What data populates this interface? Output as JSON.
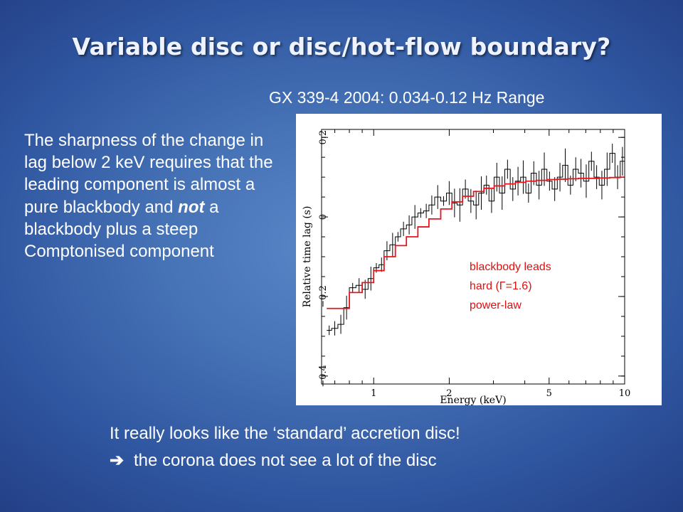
{
  "slide": {
    "title": "Variable disc or disc/hot-flow boundary?",
    "subtitle": "GX 339-4 2004: 0.034-0.12 Hz Range",
    "body": {
      "pre": "The sharpness of the change in lag below 2 keV requires that the leading component is almost a pure blackbody and ",
      "emph": "not",
      "post": " a blackbody plus a steep Comptonised component"
    },
    "conclusion_1": "It really looks like the ‘standard’ accretion disc!",
    "arrow_glyph": "➔",
    "conclusion_2": "the corona does not see a lot of the disc"
  },
  "colors": {
    "model": "#e8141c",
    "data": "#000000",
    "annotation": "#e01010"
  },
  "chart_data": {
    "type": "line",
    "xlabel": "Energy (keV)",
    "ylabel": "Relative time lag (s)",
    "xscale": "log",
    "xlim": [
      0.62,
      10.0
    ],
    "ylim": [
      -0.42,
      0.22
    ],
    "x_ticks": [
      1,
      2,
      5,
      10
    ],
    "x_tick_labels": [
      "1",
      "2",
      "5",
      "10"
    ],
    "y_ticks": [
      -0.4,
      -0.2,
      0,
      0.2
    ],
    "y_tick_labels": [
      "−0.4",
      "−0.2",
      "0",
      "0.2"
    ],
    "annotation": [
      "blackbody leads",
      "hard (Γ=1.6)",
      "power-law"
    ],
    "series": [
      {
        "kind": "data_steps",
        "energy": [
          0.65,
          0.68,
          0.72,
          0.76,
          0.8,
          0.85,
          0.9,
          0.95,
          1.0,
          1.05,
          1.1,
          1.16,
          1.22,
          1.28,
          1.35,
          1.42,
          1.5,
          1.58,
          1.66,
          1.75,
          1.85,
          1.95,
          2.05,
          2.15,
          2.26,
          2.38,
          2.5,
          2.62,
          2.75,
          2.88,
          3.02,
          3.17,
          3.33,
          3.5,
          3.67,
          3.85,
          4.04,
          4.24,
          4.45,
          4.67,
          4.9,
          5.14,
          5.39,
          5.66,
          5.94,
          6.23,
          6.54,
          6.86,
          7.2,
          7.55,
          7.92,
          8.31,
          8.72,
          9.15,
          9.6,
          10.0
        ],
        "lag": [
          -0.285,
          -0.28,
          -0.27,
          -0.228,
          -0.178,
          -0.172,
          -0.182,
          -0.155,
          -0.128,
          -0.12,
          -0.085,
          -0.07,
          -0.05,
          -0.03,
          -0.02,
          0.0,
          0.01,
          0.015,
          0.03,
          0.05,
          0.04,
          0.06,
          0.035,
          0.03,
          0.07,
          0.04,
          0.03,
          0.06,
          0.08,
          0.04,
          0.1,
          0.06,
          0.12,
          0.07,
          0.09,
          0.1,
          0.06,
          0.11,
          0.08,
          0.12,
          0.09,
          0.07,
          0.1,
          0.13,
          0.08,
          0.12,
          0.11,
          0.09,
          0.14,
          0.1,
          0.08,
          0.12,
          0.16,
          0.1,
          0.14,
          0.2
        ]
      },
      {
        "kind": "model_steps",
        "energy": [
          0.65,
          0.72,
          0.8,
          0.9,
          1.0,
          1.1,
          1.22,
          1.35,
          1.5,
          1.66,
          1.85,
          2.05,
          2.26,
          2.5,
          2.75,
          3.02,
          3.33,
          3.67,
          4.04,
          4.45,
          4.9,
          5.39,
          5.94,
          6.54,
          7.2,
          7.92,
          8.72,
          9.6,
          10.0
        ],
        "lag": [
          -0.23,
          -0.23,
          -0.19,
          -0.165,
          -0.135,
          -0.1,
          -0.072,
          -0.05,
          -0.025,
          -0.005,
          0.02,
          0.038,
          0.052,
          0.064,
          0.072,
          0.078,
          0.083,
          0.087,
          0.09,
          0.092,
          0.094,
          0.095,
          0.096,
          0.097,
          0.097,
          0.098,
          0.099,
          0.1,
          0.1
        ]
      }
    ]
  }
}
